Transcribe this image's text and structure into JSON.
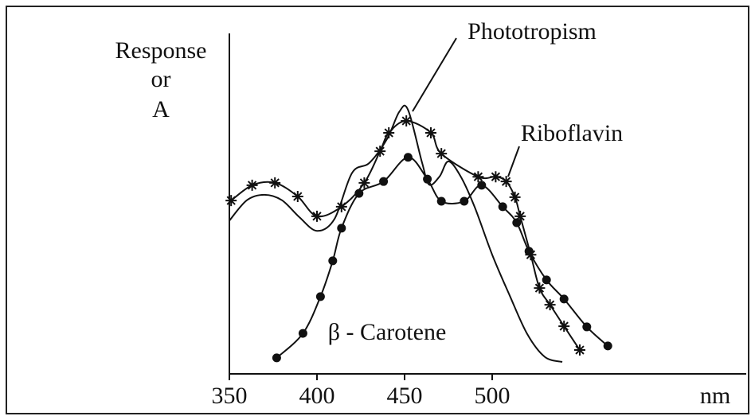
{
  "chart_data": {
    "type": "line",
    "y_label": [
      "Response",
      "or",
      "A"
    ],
    "x_label": "nm",
    "xlim": [
      350,
      645
    ],
    "xticks": [
      350,
      400,
      450,
      500
    ],
    "ylim": [
      0,
      100
    ],
    "series": [
      {
        "name": "Phototropism",
        "color": "#111111",
        "marker": "none",
        "x": [
          350,
          360,
          370,
          380,
          390,
          400,
          410,
          420,
          430,
          440,
          447,
          452,
          460,
          464,
          470,
          475,
          482,
          490,
          500,
          510,
          520,
          530,
          540
        ],
        "values": [
          45,
          51,
          52.6,
          51,
          46,
          42,
          45.5,
          59,
          62,
          69,
          77,
          77.5,
          62,
          55.6,
          58,
          62.4,
          58,
          49,
          35,
          23,
          11.7,
          5,
          3.5
        ]
      },
      {
        "name": "Riboflavin",
        "color": "#111111",
        "marker": "star",
        "x": [
          351,
          363,
          376,
          389,
          400,
          414,
          427,
          436,
          441,
          451,
          465,
          471,
          492,
          502,
          508,
          513,
          516,
          522,
          527,
          533,
          541,
          550
        ],
        "values": [
          50.9,
          55.4,
          56.1,
          52.1,
          46.3,
          49.1,
          56.1,
          65.4,
          70.8,
          74.3,
          70.8,
          64.7,
          57.9,
          57.9,
          56.5,
          51.9,
          46.3,
          35,
          25.2,
          20.3,
          14,
          7
        ]
      },
      {
        "name": "β - Carotene",
        "color": "#111111",
        "marker": "dot",
        "x": [
          377,
          392,
          402,
          409,
          414,
          424,
          438,
          452,
          463,
          471,
          484,
          494,
          506,
          514,
          521,
          531,
          541,
          554,
          566
        ],
        "values": [
          4.7,
          11.9,
          22.7,
          33.2,
          42.8,
          53,
          56.5,
          63.6,
          57.2,
          50.7,
          50.7,
          55.4,
          49.1,
          44.4,
          36,
          27.6,
          22,
          13.8,
          8.2
        ]
      }
    ]
  }
}
